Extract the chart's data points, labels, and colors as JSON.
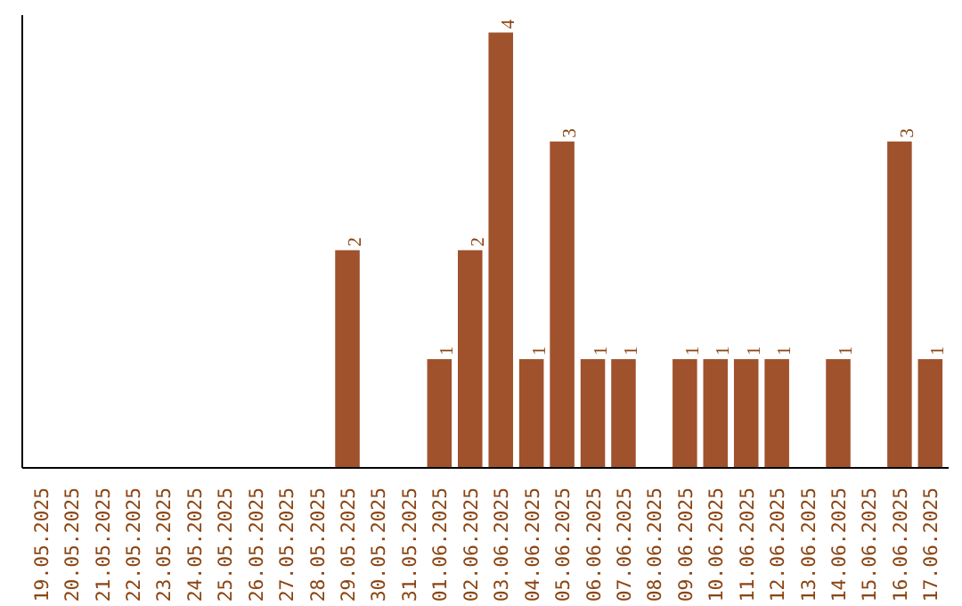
{
  "chart_data": {
    "type": "bar",
    "categories": [
      "19.05.2025",
      "20.05.2025",
      "21.05.2025",
      "22.05.2025",
      "23.05.2025",
      "24.05.2025",
      "25.05.2025",
      "26.05.2025",
      "27.05.2025",
      "28.05.2025",
      "29.05.2025",
      "30.05.2025",
      "31.05.2025",
      "01.06.2025",
      "02.06.2025",
      "03.06.2025",
      "04.06.2025",
      "05.06.2025",
      "06.06.2025",
      "07.06.2025",
      "08.06.2025",
      "09.06.2025",
      "10.06.2025",
      "11.06.2025",
      "12.06.2025",
      "13.06.2025",
      "14.06.2025",
      "15.06.2025",
      "16.06.2025",
      "17.06.2025"
    ],
    "values": [
      0,
      0,
      0,
      0,
      0,
      0,
      0,
      0,
      0,
      0,
      2,
      0,
      0,
      1,
      2,
      4,
      1,
      3,
      1,
      1,
      0,
      1,
      1,
      1,
      1,
      0,
      1,
      0,
      3,
      1
    ],
    "value_labels": [
      null,
      null,
      null,
      null,
      null,
      null,
      null,
      null,
      null,
      null,
      "2",
      null,
      null,
      "1",
      "2",
      "4",
      "1",
      "3",
      "1",
      "1",
      null,
      "1",
      "1",
      "1",
      "1",
      null,
      "1",
      null,
      "3",
      "1"
    ],
    "color": "#a0522d",
    "ylim": [
      0,
      4.16
    ],
    "tick_labels": "x",
    "grid": false
  }
}
